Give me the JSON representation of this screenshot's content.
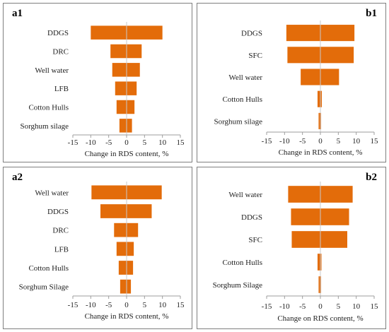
{
  "panels": [
    {
      "label": "a1",
      "label_pos": "left"
    },
    {
      "label": "b1",
      "label_pos": "right"
    },
    {
      "label": "a2",
      "label_pos": "left"
    },
    {
      "label": "b2",
      "label_pos": "right"
    }
  ],
  "colors": {
    "bar": "#E36C0A",
    "axis": "#9e9e9e",
    "border": "#7f7f7f"
  },
  "chart_data": [
    {
      "type": "bar",
      "orientation": "tornado",
      "categories": [
        "DDGS",
        "DRC",
        "Well water",
        "LFB",
        "Cotton Hulls",
        "Sorghum silage"
      ],
      "series": [
        {
          "values_low": [
            -10,
            -4.5,
            -4,
            -3.2,
            -2.8,
            -2
          ]
        },
        {
          "values_high": [
            10,
            4.2,
            3.7,
            2.8,
            2.2,
            1.5
          ]
        }
      ],
      "xlabel": "Change in RDS content, %",
      "xlim": [
        -15,
        15
      ],
      "xticks": [
        "-15",
        "-10",
        "-5",
        "0",
        "5",
        "10",
        "15"
      ]
    },
    {
      "type": "bar",
      "orientation": "tornado",
      "categories": [
        "DDGS",
        "SFC",
        "Well water",
        "Cotton Hulls",
        "Sorghum silage"
      ],
      "series": [
        {
          "values_low": [
            -9.5,
            -9.2,
            -5.5,
            -0.8,
            -0.5
          ]
        },
        {
          "values_high": [
            9.5,
            9.3,
            5.2,
            0.4,
            0.2
          ]
        }
      ],
      "xlabel": "Change in RDS content, %",
      "xlim": [
        -15,
        15
      ],
      "xticks": [
        "-15",
        "-10",
        "-5",
        "0",
        "5",
        "10",
        "15"
      ]
    },
    {
      "type": "bar",
      "orientation": "tornado",
      "categories": [
        "Well water",
        "DDGS",
        "DRC",
        "LFB",
        "Cotton Hulls",
        "Sorghum Silage"
      ],
      "series": [
        {
          "values_low": [
            -9.8,
            -7.3,
            -3.5,
            -2.8,
            -2.2,
            -1.8
          ]
        },
        {
          "values_high": [
            9.8,
            7.0,
            3.2,
            2.0,
            1.8,
            1.2
          ]
        }
      ],
      "xlabel": "Change in RDS content, %",
      "xlim": [
        -15,
        15
      ],
      "xticks": [
        "-15",
        "-10",
        "-5",
        "0",
        "5",
        "10",
        "15"
      ]
    },
    {
      "type": "bar",
      "orientation": "tornado",
      "categories": [
        "Well water",
        "DDGS",
        "SFC",
        "Cotton Hulls",
        "Sorghum Silage"
      ],
      "series": [
        {
          "values_low": [
            -9.0,
            -8.2,
            -8.0,
            -0.8,
            -0.5
          ]
        },
        {
          "values_high": [
            9.0,
            8.0,
            7.5,
            0.3,
            0.2
          ]
        }
      ],
      "xlabel": "Change on RDS content, %",
      "xlim": [
        -15,
        15
      ],
      "xticks": [
        "-15",
        "-10",
        "-5",
        "0",
        "5",
        "10",
        "15"
      ]
    }
  ]
}
